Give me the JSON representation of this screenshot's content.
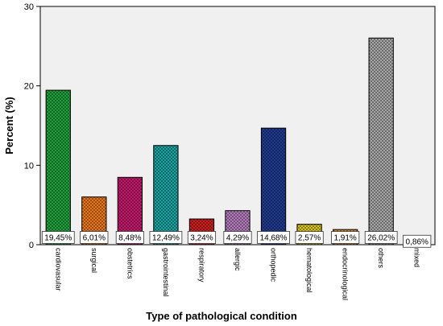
{
  "chart_data": {
    "type": "bar",
    "xlabel": "Type of pathological condition",
    "ylabel": "Percent (%)",
    "ylim": [
      0,
      30
    ],
    "yticks": [
      0,
      10,
      20,
      30
    ],
    "grid": false,
    "categories": [
      "cardiovasular",
      "surgical",
      "obstetrics",
      "gastrointestinal",
      "respiratory",
      "allergic",
      "orthopedic",
      "hematological",
      "endocrinological",
      "others",
      "mixed"
    ],
    "values": [
      19.45,
      6.01,
      8.48,
      12.49,
      3.24,
      4.29,
      14.68,
      2.57,
      1.91,
      26.02,
      0.86
    ],
    "data_labels": [
      "19,45%",
      "6,01%",
      "8,48%",
      "12,49%",
      "3,24%",
      "4,29%",
      "14,68%",
      "2,57%",
      "1,91%",
      "26,02%",
      "0,86%"
    ],
    "colors": [
      "#1f9e3c",
      "#e8761e",
      "#c21a6a",
      "#1aa3a0",
      "#cc2020",
      "#b07ab8",
      "#1f3a8f",
      "#d8c21f",
      "#e0902a",
      "#a6a6a6",
      "#ffffff"
    ],
    "plot_background": "#f0f0f0"
  }
}
